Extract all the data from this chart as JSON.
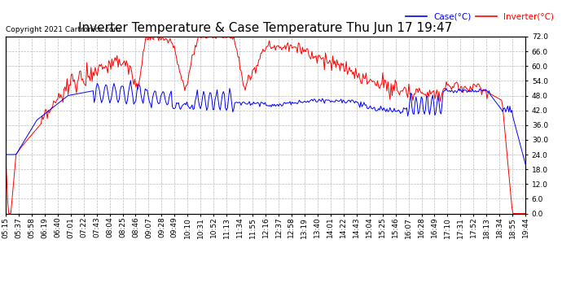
{
  "title": "Inverter Temperature & Case Temperature Thu Jun 17 19:47",
  "copyright": "Copyright 2021 Cartronics.com",
  "legend_labels": [
    "Case(°C)",
    "Inverter(°C)"
  ],
  "yticks": [
    0.0,
    6.0,
    12.0,
    18.0,
    24.0,
    30.0,
    36.0,
    42.0,
    48.0,
    54.0,
    60.0,
    66.0,
    72.0
  ],
  "ylim": [
    0.0,
    72.0
  ],
  "background_color": "#ffffff",
  "grid_color": "#bbbbbb",
  "title_fontsize": 11,
  "tick_fontsize": 6.5,
  "x_labels": [
    "05:15",
    "05:37",
    "05:58",
    "06:19",
    "06:40",
    "07:01",
    "07:22",
    "07:43",
    "08:04",
    "08:25",
    "08:46",
    "09:07",
    "09:28",
    "09:49",
    "10:10",
    "10:31",
    "10:52",
    "11:13",
    "11:34",
    "11:55",
    "12:16",
    "12:37",
    "12:58",
    "13:19",
    "13:40",
    "14:01",
    "14:22",
    "14:43",
    "15:04",
    "15:25",
    "15:46",
    "16:07",
    "16:28",
    "16:49",
    "17:10",
    "17:31",
    "17:52",
    "18:13",
    "18:34",
    "18:55",
    "19:44"
  ]
}
